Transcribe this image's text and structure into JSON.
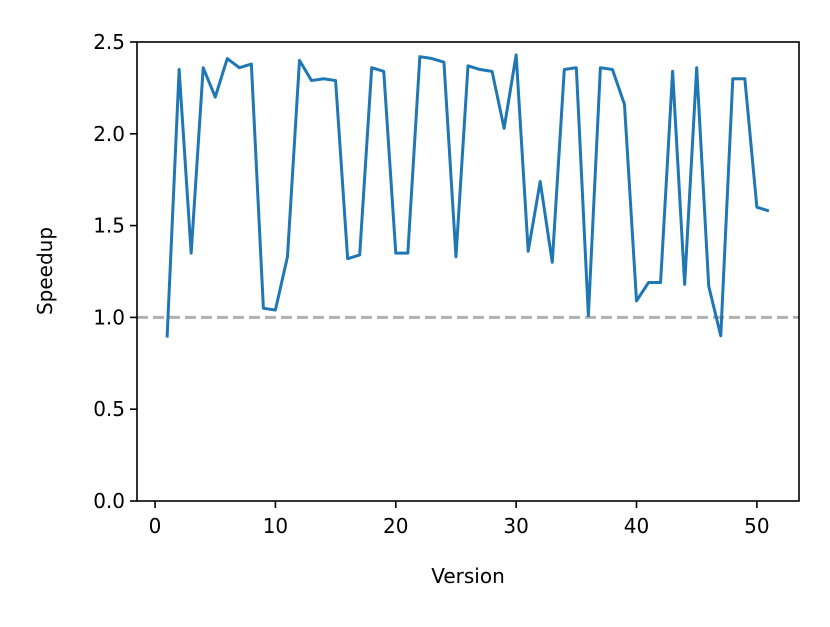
{
  "chart_data": {
    "type": "line",
    "x_label": "Version",
    "y_label": "Speedup",
    "x": [
      1,
      2,
      3,
      4,
      5,
      6,
      7,
      8,
      9,
      10,
      11,
      12,
      13,
      14,
      15,
      16,
      17,
      18,
      19,
      20,
      21,
      22,
      23,
      24,
      25,
      26,
      27,
      28,
      29,
      30,
      31,
      32,
      33,
      34,
      35,
      36,
      37,
      38,
      39,
      40,
      41,
      42,
      43,
      44,
      45,
      46,
      47,
      48,
      49,
      50,
      51
    ],
    "series": [
      {
        "color": "#1f77b4",
        "values": [
          0.89,
          2.35,
          1.35,
          2.36,
          2.2,
          2.41,
          2.36,
          2.38,
          1.05,
          1.04,
          1.33,
          2.4,
          2.29,
          2.3,
          2.29,
          1.32,
          1.34,
          2.36,
          2.34,
          1.35,
          1.35,
          2.42,
          2.41,
          2.39,
          1.33,
          2.37,
          2.35,
          2.34,
          2.03,
          2.43,
          1.36,
          1.74,
          1.3,
          2.35,
          2.36,
          1.01,
          2.36,
          2.35,
          2.16,
          1.09,
          1.19,
          1.19,
          2.34,
          1.18,
          2.36,
          1.17,
          0.9,
          2.3,
          2.3,
          1.6,
          1.58
        ]
      }
    ],
    "xlim": [
      -1.5,
      53.5
    ],
    "xticks": [
      0,
      10,
      20,
      30,
      40,
      50
    ],
    "ylim": [
      0,
      2.5
    ],
    "yticks": [
      {
        "value": 0,
        "label": "0.0"
      },
      0.5,
      {
        "value": 1,
        "label": "1.0"
      },
      1.5,
      {
        "value": 2,
        "label": "2.0"
      },
      2.5
    ],
    "hline": {
      "value": 1,
      "color": "#b0b0b0"
    }
  }
}
